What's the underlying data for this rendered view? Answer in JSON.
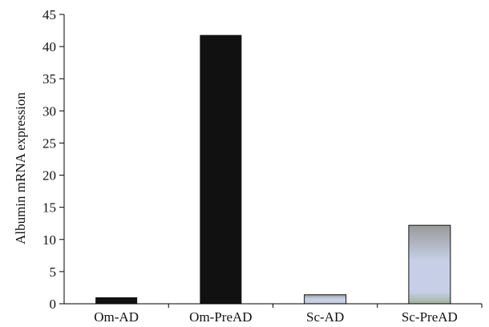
{
  "chart_data": {
    "type": "bar",
    "title": "",
    "xlabel": "",
    "ylabel": "Albumin mRNA expression",
    "ylim": [
      0,
      45
    ],
    "yticks": [
      0,
      5,
      10,
      15,
      20,
      25,
      30,
      35,
      40,
      45
    ],
    "categories": [
      "Om-AD",
      "Om-PreAD",
      "Sc-AD",
      "Sc-PreAD"
    ],
    "values": [
      1.0,
      41.8,
      1.4,
      12.2
    ],
    "bar_styles": [
      "solid-black",
      "solid-black",
      "gradient-blue-gray",
      "gradient-blue-gray"
    ],
    "colors": {
      "solid": "#111111",
      "gradient_top": "#9a9a9a",
      "gradient_mid": "#c6cfe6",
      "gradient_bottom": "#9fb39a",
      "axis": "#000000"
    },
    "grid": false,
    "legend": "none"
  }
}
